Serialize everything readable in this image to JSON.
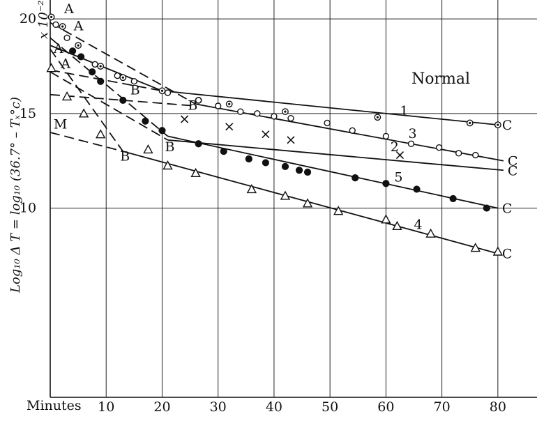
{
  "chart_data": {
    "type": "line",
    "title": "Normal",
    "xlabel": "Minutes",
    "ylabel": "Log₁₀ Δ T = log₁₀ (36.7° – Tₓ°c)",
    "y_multiplier": "x 10⁻²",
    "xlim": [
      0,
      87
    ],
    "ylim": [
      0,
      21
    ],
    "x_ticks": [
      "10",
      "20",
      "30",
      "40",
      "50",
      "60",
      "70",
      "80"
    ],
    "x_tick_values": [
      10,
      20,
      30,
      40,
      50,
      60,
      70,
      80
    ],
    "y_ticks": [
      "10",
      "15",
      "20"
    ],
    "y_tick_values": [
      10,
      15,
      20
    ],
    "grid": true,
    "series": [
      {
        "name": "1",
        "marker": "circle-dot",
        "points": [
          [
            0.2,
            20.1
          ],
          [
            2.2,
            19.6
          ],
          [
            5,
            18.6
          ],
          [
            9,
            17.5
          ],
          [
            13,
            16.9
          ],
          [
            20,
            16.2
          ],
          [
            26.5,
            15.7
          ],
          [
            32,
            15.5
          ],
          [
            42,
            15.1
          ],
          [
            58.5,
            14.8
          ],
          [
            75,
            14.5
          ],
          [
            80,
            14.4
          ]
        ],
        "segments": [
          {
            "x": [
              0,
              20
            ],
            "y": [
              18.6,
              16.2
            ],
            "style": "solid"
          },
          {
            "x": [
              20,
              80
            ],
            "y": [
              16.2,
              14.4
            ],
            "style": "solid"
          }
        ],
        "end_label": "C"
      },
      {
        "name": "2",
        "marker": "cross",
        "points": [
          [
            24,
            14.7
          ],
          [
            32,
            14.3
          ],
          [
            38.5,
            13.9
          ],
          [
            43,
            13.6
          ],
          [
            62.5,
            12.8
          ]
        ],
        "segments": [
          {
            "x": [
              0,
              21
            ],
            "y": [
              17.2,
              13.6
            ],
            "style": "dashed"
          },
          {
            "x": [
              21,
              81
            ],
            "y": [
              13.6,
              12.0
            ],
            "style": "solid"
          }
        ],
        "end_label": "C"
      },
      {
        "name": "3",
        "marker": "circle",
        "points": [
          [
            1,
            19.7
          ],
          [
            3,
            19.0
          ],
          [
            8,
            17.6
          ],
          [
            12,
            17.0
          ],
          [
            15,
            16.7
          ],
          [
            21,
            16.1
          ],
          [
            26.5,
            15.7
          ],
          [
            30,
            15.4
          ],
          [
            34,
            15.1
          ],
          [
            37,
            15.0
          ],
          [
            40,
            14.85
          ],
          [
            43,
            14.75
          ],
          [
            49.5,
            14.5
          ],
          [
            54,
            14.1
          ],
          [
            60,
            13.8
          ],
          [
            64.5,
            13.4
          ],
          [
            69.5,
            13.2
          ],
          [
            73,
            12.9
          ],
          [
            76,
            12.8
          ]
        ],
        "segments": [
          {
            "x": [
              0,
              26
            ],
            "y": [
              19.8,
              15.5
            ],
            "style": "dashed"
          },
          {
            "x": [
              26,
              81
            ],
            "y": [
              15.5,
              12.5
            ],
            "style": "solid"
          }
        ],
        "end_label": "C"
      },
      {
        "name": "5",
        "marker": "filled-circle",
        "points": [
          [
            4,
            18.3
          ],
          [
            5.5,
            18.0
          ],
          [
            7.5,
            17.2
          ],
          [
            9,
            16.7
          ],
          [
            13,
            15.7
          ],
          [
            17,
            14.6
          ],
          [
            20,
            14.1
          ],
          [
            26.5,
            13.4
          ],
          [
            31,
            13.0
          ],
          [
            35.5,
            12.6
          ],
          [
            38.5,
            12.4
          ],
          [
            42,
            12.2
          ],
          [
            44.5,
            12.0
          ],
          [
            46,
            11.9
          ],
          [
            54.5,
            11.6
          ],
          [
            60,
            11.3
          ],
          [
            65.5,
            11.0
          ],
          [
            72,
            10.5
          ],
          [
            78,
            10.0
          ]
        ],
        "segments": [
          {
            "x": [
              0,
              21
            ],
            "y": [
              19.0,
              13.8
            ],
            "style": "dashed"
          },
          {
            "x": [
              21,
              80
            ],
            "y": [
              13.8,
              10.0
            ],
            "style": "solid"
          }
        ],
        "end_label": "C"
      },
      {
        "name": "4",
        "marker": "triangle",
        "points": [
          [
            0.2,
            17.4
          ],
          [
            3,
            15.9
          ],
          [
            6,
            15.0
          ],
          [
            9,
            13.9
          ],
          [
            17.5,
            13.1
          ],
          [
            21,
            12.25
          ],
          [
            26,
            11.85
          ],
          [
            36,
            11.0
          ],
          [
            42,
            10.65
          ],
          [
            46,
            10.25
          ],
          [
            51.5,
            9.85
          ],
          [
            60,
            9.4
          ],
          [
            62,
            9.05
          ],
          [
            68,
            8.65
          ],
          [
            76,
            7.9
          ],
          [
            80,
            7.7
          ]
        ],
        "segments": [
          {
            "x": [
              0,
              13
            ],
            "y": [
              18.4,
              13.0
            ],
            "style": "dashed"
          },
          {
            "x": [
              13,
              80
            ],
            "y": [
              13.0,
              7.6
            ],
            "style": "solid"
          }
        ],
        "end_label": "C"
      }
    ],
    "extra_lines": [
      {
        "x": [
          0,
          26
        ],
        "y": [
          16.0,
          15.4
        ],
        "style": "dashed"
      },
      {
        "x": [
          0,
          13
        ],
        "y": [
          14.0,
          13.0
        ],
        "style": "dashed"
      },
      {
        "x": [
          0,
          20
        ],
        "y": [
          17.3,
          16.2
        ],
        "style": "dashed"
      }
    ],
    "annotations": [
      {
        "text": "A",
        "x": 2.5,
        "y": 20.3
      },
      {
        "text": "A",
        "x": 4.2,
        "y": 19.4
      },
      {
        "text": "A",
        "x": 0.6,
        "y": 18.2
      },
      {
        "text": "A",
        "x": 1.9,
        "y": 17.4
      },
      {
        "text": "B",
        "x": 14.3,
        "y": 16.0
      },
      {
        "text": "B",
        "x": 24.6,
        "y": 15.2
      },
      {
        "text": "B",
        "x": 20.5,
        "y": 13.0
      },
      {
        "text": "B",
        "x": 12.5,
        "y": 12.5
      },
      {
        "text": "M",
        "x": 0.6,
        "y": 14.2
      }
    ],
    "series_labels": [
      {
        "text": "1",
        "x": 62.5,
        "y": 14.9
      },
      {
        "text": "3",
        "x": 64,
        "y": 13.7
      },
      {
        "text": "2",
        "x": 60.8,
        "y": 13.0
      },
      {
        "text": "5",
        "x": 61.5,
        "y": 11.4
      },
      {
        "text": "4",
        "x": 65,
        "y": 8.9
      }
    ]
  }
}
